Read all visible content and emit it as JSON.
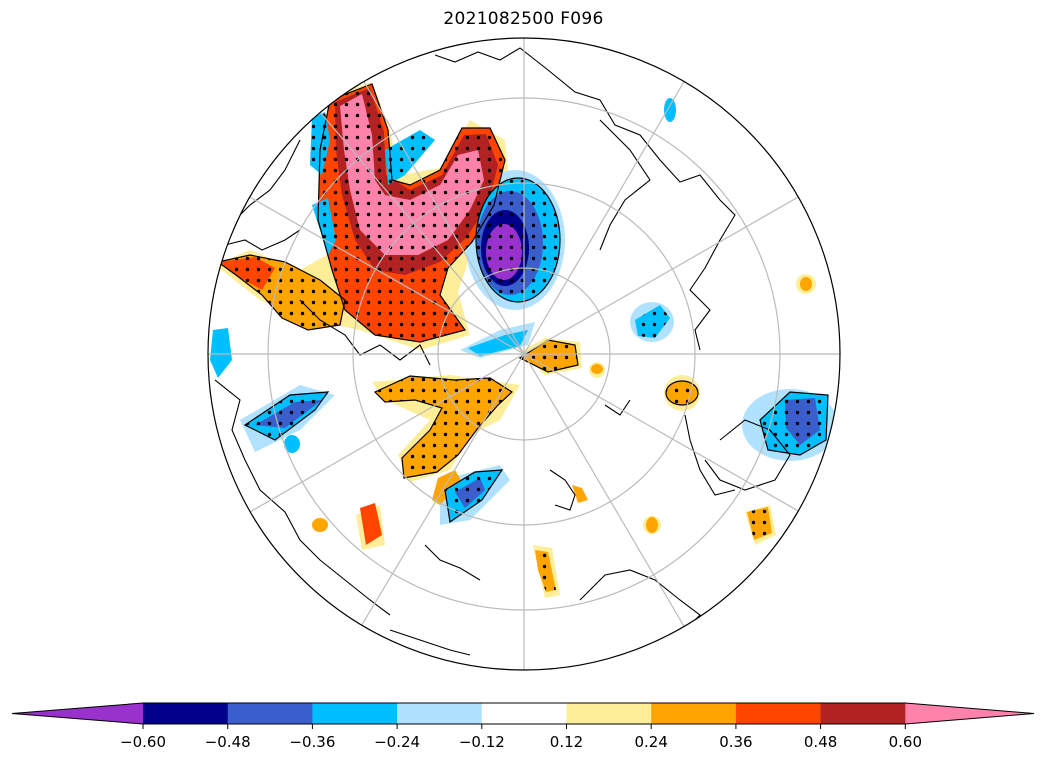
{
  "map": {
    "title": "2021082500 F096",
    "projection": "north-polar-stereographic",
    "graticule": "on",
    "coastlines": "on",
    "stippling": "significance dots"
  },
  "colorbar": {
    "extend": "both",
    "colors": [
      "#9932cc",
      "#00008b",
      "#3a5fcd",
      "#00bfff",
      "#b0e2ff",
      "#ffffff",
      "#ffee99",
      "#ffa500",
      "#ff4500",
      "#b22222",
      "#ff82ab"
    ],
    "ticks": [
      "−0.60",
      "−0.48",
      "−0.36",
      "−0.24",
      "−0.12",
      "0.12",
      "0.24",
      "0.36",
      "0.48",
      "0.60"
    ]
  }
}
